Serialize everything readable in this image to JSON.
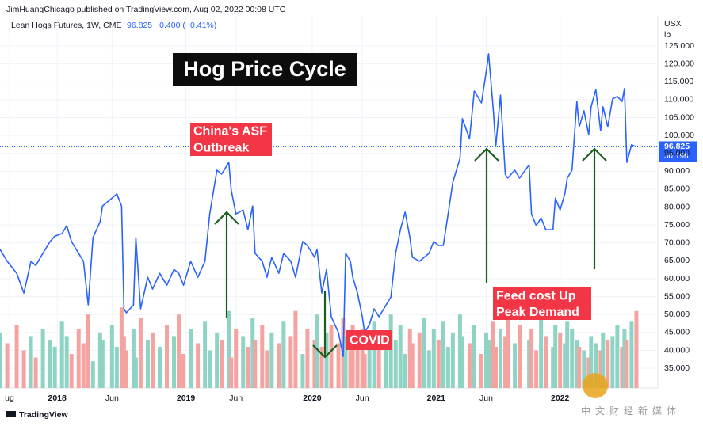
{
  "header": "JimHuangChicago published on TradingView.com, Aug 02, 2022 00:08 UTC",
  "chart_data": {
    "type": "line",
    "title": "Hog Price Cycle",
    "symbol": "Lean Hogs Futures, 1W, CME",
    "legend_values": "96.825 −0.400 (−0.41%)",
    "unit_top": "USX",
    "unit_bottom": "lb",
    "countdown": "3d 19h",
    "color": "#2962ff",
    "x": [
      0,
      3,
      7,
      10,
      13,
      15,
      18,
      21,
      23,
      26,
      28,
      30,
      33,
      35,
      37,
      39,
      42,
      43,
      47,
      49,
      51,
      52,
      53,
      56,
      57,
      59,
      62,
      64,
      67,
      70,
      73,
      75,
      77,
      80,
      83,
      86,
      88,
      91,
      93,
      96,
      97,
      99,
      102,
      104,
      106,
      107,
      110,
      112,
      114,
      117,
      119,
      122,
      124,
      127,
      129,
      132,
      133,
      135,
      137,
      139,
      142,
      144,
      145,
      147,
      148,
      150,
      152,
      153,
      155,
      157,
      159,
      162,
      164,
      166,
      168,
      170,
      172,
      173,
      176,
      178,
      180,
      182,
      184,
      186,
      188,
      190,
      193,
      194,
      197,
      199,
      202,
      204,
      205,
      207,
      208,
      210,
      212,
      213,
      216,
      218,
      222,
      223,
      225,
      227,
      229,
      232,
      233,
      235,
      237,
      238,
      240,
      242,
      243,
      245,
      247,
      248,
      250,
      252,
      253,
      255,
      257,
      259,
      261,
      262,
      263,
      265,
      267
    ],
    "values": [
      68.2,
      64.9,
      61.5,
      56.0,
      64.9,
      63.7,
      67.1,
      70.4,
      71.9,
      72.6,
      74.8,
      70.4,
      67.1,
      64.9,
      52.7,
      71.5,
      75.9,
      80.3,
      82.5,
      83.7,
      80.3,
      51.6,
      50.5,
      52.7,
      71.5,
      51.6,
      60.4,
      57.1,
      61.5,
      58.2,
      62.6,
      61.5,
      58.2,
      64.9,
      60.4,
      64.9,
      78.1,
      90.3,
      89.2,
      92.5,
      84.8,
      78.1,
      79.2,
      73.7,
      80.3,
      67.1,
      64.9,
      60.4,
      66.0,
      61.5,
      67.1,
      64.9,
      60.4,
      70.4,
      69.3,
      66.0,
      68.2,
      56.0,
      62.6,
      49.4,
      45.0,
      38.3,
      67.1,
      64.9,
      60.4,
      56.0,
      49.4,
      45.0,
      47.2,
      51.6,
      49.4,
      52.7,
      54.9,
      67.1,
      73.7,
      78.6,
      71.5,
      66.0,
      64.9,
      66.0,
      67.1,
      70.4,
      69.3,
      69.3,
      78.1,
      87.0,
      93.6,
      104.7,
      99.1,
      112.4,
      109.1,
      117.9,
      122.8,
      106.9,
      96.9,
      111.3,
      89.2,
      88.1,
      90.3,
      88.1,
      91.8,
      78.1,
      74.8,
      77.0,
      73.7,
      73.7,
      82.5,
      79.2,
      83.7,
      88.1,
      90.3,
      109.5,
      102.4,
      106.9,
      100.2,
      108.0,
      112.8,
      101.3,
      108.0,
      102.4,
      110.2,
      110.9,
      109.5,
      113.1,
      92.5,
      97.4,
      96.825
    ],
    "volume": [
      45,
      42,
      47,
      40,
      44,
      38,
      46,
      43,
      41,
      48,
      44,
      39,
      46,
      42,
      50,
      37,
      45,
      43,
      47,
      41,
      52,
      44,
      40,
      46,
      38,
      49,
      43,
      45,
      41,
      47,
      44,
      50,
      39,
      46,
      42,
      48,
      40,
      45,
      43,
      51,
      38,
      46,
      44,
      41,
      49,
      43,
      47,
      40,
      45,
      42,
      48,
      44,
      51,
      39,
      46,
      43,
      50,
      41,
      45,
      47,
      42,
      49,
      44,
      40,
      47,
      43,
      46,
      39,
      45,
      48,
      41,
      44,
      50,
      43,
      47,
      39,
      46,
      42,
      45,
      49,
      40,
      46,
      43,
      48,
      41,
      45,
      50,
      44,
      42,
      47,
      39,
      45,
      43,
      48,
      41,
      46,
      44,
      50,
      42,
      47,
      43,
      46,
      40,
      49,
      44,
      41,
      47,
      45,
      42,
      48,
      46,
      43,
      41,
      40,
      38,
      44,
      42,
      40,
      45,
      43,
      44,
      47,
      41,
      46,
      43,
      48,
      51
    ],
    "volume_colors": {
      "up": "#8fd3c5",
      "down": "#f5a3a1"
    },
    "xlim": [
      0,
      276
    ],
    "xticks": [
      {
        "value": 4,
        "label": "ug"
      },
      {
        "value": 24,
        "label": "2018"
      },
      {
        "value": 47,
        "label": "Jun"
      },
      {
        "value": 78,
        "label": "2019"
      },
      {
        "value": 99,
        "label": "Jun"
      },
      {
        "value": 131,
        "label": "2020"
      },
      {
        "value": 152,
        "label": "Jun"
      },
      {
        "value": 183,
        "label": "2021"
      },
      {
        "value": 204,
        "label": "Jun"
      },
      {
        "value": 235,
        "label": "2022"
      }
    ],
    "ylim": [
      29.5,
      133.4
    ],
    "yticks": [
      {
        "value": 35,
        "label": "35.000"
      },
      {
        "value": 40,
        "label": "40.000"
      },
      {
        "value": 45,
        "label": "45.000"
      },
      {
        "value": 50,
        "label": "50.000"
      },
      {
        "value": 55,
        "label": "55.000"
      },
      {
        "value": 60,
        "label": "60.000"
      },
      {
        "value": 65,
        "label": "65.000"
      },
      {
        "value": 70,
        "label": "70.000"
      },
      {
        "value": 75,
        "label": "75.000"
      },
      {
        "value": 80,
        "label": "80.000"
      },
      {
        "value": 85,
        "label": "85.000"
      },
      {
        "value": 90,
        "label": "90.000"
      },
      {
        "value": 95,
        "label": "95.000"
      },
      {
        "value": 100,
        "label": "100.000"
      },
      {
        "value": 105,
        "label": "105.000"
      },
      {
        "value": 110,
        "label": "110.000"
      },
      {
        "value": 115,
        "label": "115.000"
      },
      {
        "value": 120,
        "label": "120.000"
      },
      {
        "value": 125,
        "label": "125.000"
      }
    ],
    "grid": true,
    "annotations": [
      {
        "lines": [
          "China's ASF",
          "Outbreak"
        ]
      },
      {
        "lines": [
          "COVID"
        ]
      },
      {
        "lines": [
          "Feed cost Up",
          "Peak Demand"
        ]
      }
    ]
  },
  "footer": "TradingView",
  "watermark": "中文财经新媒体"
}
